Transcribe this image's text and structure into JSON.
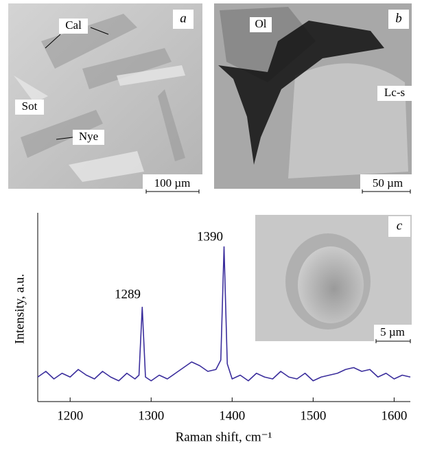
{
  "panels": [
    {
      "letter": "a",
      "labels": [
        "Cal",
        "Sot",
        "Nye"
      ],
      "scale": "100 µm"
    },
    {
      "letter": "b",
      "labels": [
        "Ol",
        "Lc-s"
      ],
      "scale": "50 µm"
    },
    {
      "letter": "c",
      "scale": "5 µm"
    }
  ],
  "chart_data": {
    "type": "line",
    "x_label": "Raman shift, cm⁻¹",
    "y_label": "Intensity, a.u.",
    "annotations": [
      "1289",
      "1390"
    ],
    "x": [
      1160,
      1170,
      1180,
      1190,
      1200,
      1210,
      1220,
      1230,
      1240,
      1250,
      1260,
      1270,
      1280,
      1285,
      1289,
      1293,
      1300,
      1310,
      1320,
      1330,
      1340,
      1350,
      1360,
      1370,
      1380,
      1386,
      1390,
      1394,
      1400,
      1410,
      1420,
      1430,
      1440,
      1450,
      1460,
      1470,
      1480,
      1490,
      1500,
      1510,
      1520,
      1530,
      1540,
      1550,
      1560,
      1570,
      1580,
      1590,
      1600,
      1610,
      1620
    ],
    "series": [
      {
        "color": "#3a2d9c",
        "values": [
          13,
          16,
          12,
          15,
          13,
          17,
          14,
          12,
          16,
          13,
          11,
          15,
          12,
          14,
          50,
          13,
          11,
          14,
          12,
          15,
          18,
          21,
          19,
          16,
          17,
          22,
          82,
          20,
          12,
          14,
          11,
          15,
          13,
          12,
          16,
          13,
          12,
          15,
          11,
          13,
          14,
          15,
          17,
          18,
          16,
          17,
          13,
          15,
          12,
          14,
          13
        ]
      }
    ],
    "xlim": [
      1160,
      1620
    ],
    "xticks": [
      1200,
      1300,
      1400,
      1500,
      1600
    ],
    "ylim": [
      0,
      100
    ]
  }
}
